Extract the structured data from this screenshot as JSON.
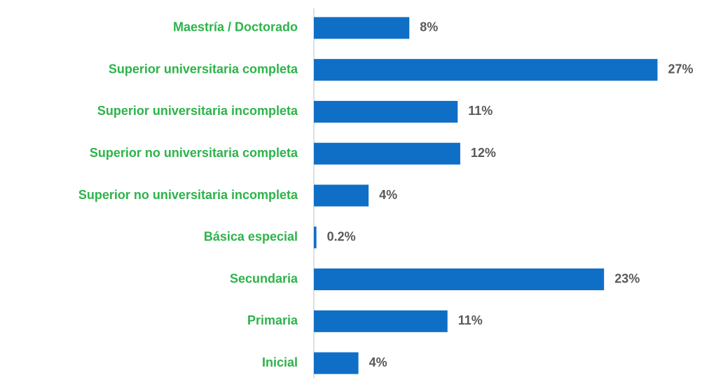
{
  "chart_data": {
    "type": "bar",
    "orientation": "horizontal",
    "categories": [
      "Maestría / Doctorado",
      "Superior universitaria completa",
      "Superior universitaria incompleta",
      "Superior no universitaria completa",
      "Superior no universitaria incompleta",
      "Básica especial",
      "Secundaria",
      "Primaria",
      "Inicial"
    ],
    "values": [
      7.5,
      27,
      11.3,
      11.5,
      4.3,
      0.2,
      22.8,
      10.5,
      3.5
    ],
    "value_labels": [
      "8%",
      "27%",
      "11%",
      "12%",
      "4%",
      "0.2%",
      "23%",
      "11%",
      "4%"
    ],
    "color": "#0f6fc6",
    "label_color": "#2db34a",
    "value_label_color": "#595959",
    "xlim": [
      0,
      30
    ]
  }
}
